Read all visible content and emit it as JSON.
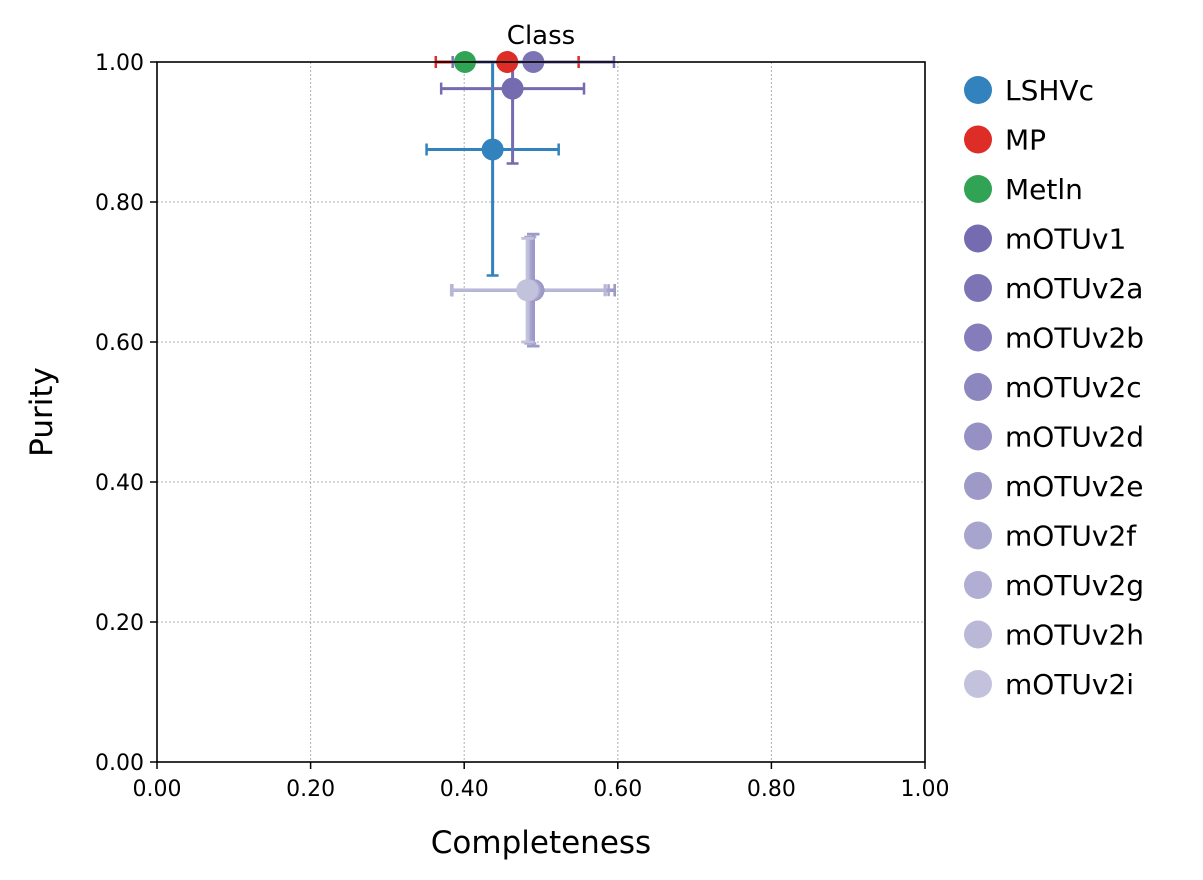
{
  "chart_data": {
    "type": "scatter",
    "title": "Class",
    "xlabel": "Completeness",
    "ylabel": "Purity",
    "xlim": [
      0,
      1
    ],
    "ylim": [
      0,
      1
    ],
    "xticks": [
      "0.00",
      "0.20",
      "0.40",
      "0.60",
      "0.80",
      "1.00"
    ],
    "yticks": [
      "0.00",
      "0.20",
      "0.40",
      "0.60",
      "0.80",
      "1.00"
    ],
    "grid": true,
    "legend_position": "outside-right",
    "series": [
      {
        "name": "LSHVc",
        "color": "#3182bd",
        "x": 0.437,
        "y": 0.875,
        "xerr": 0.086,
        "yerr": 0.18
      },
      {
        "name": "MP",
        "color": "#de2d26",
        "x": 0.456,
        "y": 1.0,
        "xerr": 0.093,
        "yerr": 0.0
      },
      {
        "name": "Metln",
        "color": "#31a354",
        "x": 0.401,
        "y": 1.0,
        "xerr": 0.0,
        "yerr": 0.0
      },
      {
        "name": "mOTUv1",
        "color": "#756bb1",
        "x": 0.463,
        "y": 0.962,
        "xerr": 0.093,
        "yerr": 0.107
      },
      {
        "name": "mOTUv2a",
        "color": "#7d74b6",
        "x": 0.49,
        "y": 0.674,
        "xerr": 0.106,
        "yerr": 0.08
      },
      {
        "name": "mOTUv2b",
        "color": "#857dbb",
        "x": 0.49,
        "y": 0.674,
        "xerr": 0.106,
        "yerr": 0.08
      },
      {
        "name": "mOTUv2c",
        "color": "#8d87bf",
        "x": 0.49,
        "y": 0.674,
        "xerr": 0.106,
        "yerr": 0.08
      },
      {
        "name": "mOTUv2d",
        "color": "#9691c4",
        "x": 0.49,
        "y": 0.674,
        "xerr": 0.106,
        "yerr": 0.08
      },
      {
        "name": "mOTUv2e",
        "color": "#9e9ac8",
        "x": 0.49,
        "y": 0.674,
        "xerr": 0.106,
        "yerr": 0.08
      },
      {
        "name": "mOTUv2f",
        "color": "#a7a4cd",
        "x": 0.486,
        "y": 0.674,
        "xerr": 0.102,
        "yerr": 0.076
      },
      {
        "name": "mOTUv2g",
        "color": "#b0aed2",
        "x": 0.484,
        "y": 0.674,
        "xerr": 0.1,
        "yerr": 0.074
      },
      {
        "name": "mOTUv2h",
        "color": "#b9b8d7",
        "x": 0.483,
        "y": 0.674,
        "xerr": 0.1,
        "yerr": 0.074
      },
      {
        "name": "mOTUv2i",
        "color": "#c2c2dc",
        "x": 0.482,
        "y": 0.674,
        "xerr": 0.0,
        "yerr": 0.074
      }
    ],
    "extra_points": [
      {
        "series": "mOTUv2a",
        "x": 0.49,
        "y": 1.0,
        "xerr": 0.105
      }
    ]
  }
}
